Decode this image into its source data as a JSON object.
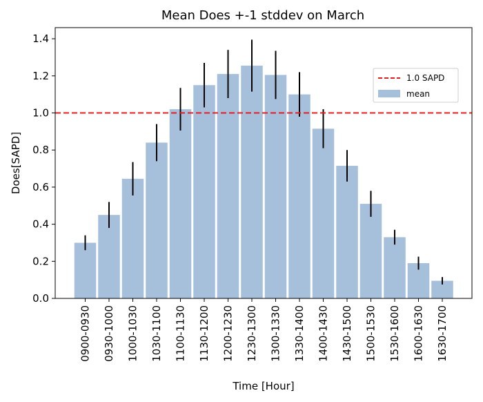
{
  "chart_data": {
    "type": "bar",
    "title": "Mean Does +-1 stddev on March",
    "xlabel": "Time [Hour]",
    "ylabel": "Does[SAPD]",
    "ylim": [
      0,
      1.46
    ],
    "yticks": [
      "0.0",
      "0.2",
      "0.4",
      "0.6",
      "0.8",
      "1.0",
      "1.2",
      "1.4"
    ],
    "categories": [
      "0900-0930",
      "0930-1000",
      "1000-1030",
      "1030-1100",
      "1100-1130",
      "1130-1200",
      "1200-1230",
      "1230-1300",
      "1300-1330",
      "1330-1400",
      "1400-1430",
      "1430-1500",
      "1500-1530",
      "1530-1600",
      "1600-1630",
      "1630-1700"
    ],
    "series": [
      {
        "name": "mean",
        "values": [
          0.3,
          0.45,
          0.645,
          0.84,
          1.02,
          1.15,
          1.21,
          1.255,
          1.205,
          1.1,
          0.915,
          0.715,
          0.51,
          0.33,
          0.19,
          0.095
        ],
        "error": [
          0.04,
          0.07,
          0.09,
          0.1,
          0.115,
          0.12,
          0.13,
          0.14,
          0.13,
          0.12,
          0.105,
          0.085,
          0.07,
          0.04,
          0.035,
          0.02
        ],
        "color": "#a6c0dc"
      }
    ],
    "reference_line": {
      "value": 1.0,
      "name": "1.0 SAPD",
      "color": "#e41a1c"
    },
    "error_color": "#000000",
    "grid": false,
    "legend_position": "upper-right",
    "legend": [
      {
        "label": "1.0 SAPD",
        "kind": "dashed-line",
        "color": "#e41a1c"
      },
      {
        "label": "mean",
        "kind": "patch",
        "color": "#a6c0dc"
      }
    ]
  }
}
